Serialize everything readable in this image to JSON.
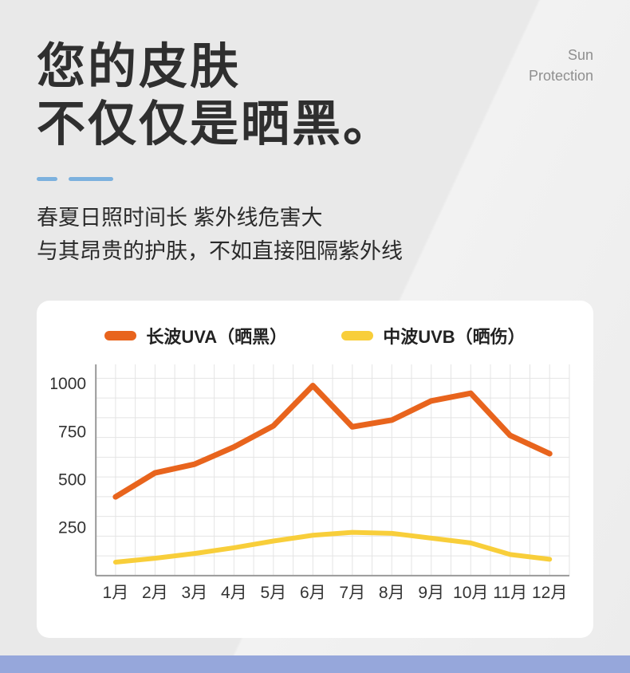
{
  "page": {
    "watermark": {
      "line1": "Sun",
      "line2": "Protection"
    },
    "title": {
      "line1": "您的皮肤",
      "line2": "不仅仅是晒黑。"
    },
    "subtitle": {
      "line1": "春夏日照时间长 紫外线危害大",
      "line2": "与其昂贵的护肤，不如直接阻隔紫外线"
    }
  },
  "colors": {
    "background": "#e9e9e9",
    "title_text": "#2f2f2f",
    "accent_dash_blue": "#7cb1de",
    "uva_orange": "#e8641d",
    "uvb_yellow": "#f8ce3a",
    "card_background": "#ffffff",
    "bottom_band_blue": "#96a7db"
  },
  "chart_data": {
    "type": "line",
    "title": "",
    "xlabel": "",
    "ylabel": "",
    "categories": [
      "1月",
      "2月",
      "3月",
      "4月",
      "5月",
      "6月",
      "7月",
      "8月",
      "9月",
      "10月",
      "11月",
      "12月"
    ],
    "series": [
      {
        "name": "长波UVA（晒黑）",
        "color": "#e8641d",
        "values": [
          410,
          535,
          580,
          670,
          780,
          990,
          775,
          810,
          910,
          950,
          730,
          635
        ]
      },
      {
        "name": "中波UVB（晒伤）",
        "color": "#f8ce3a",
        "values": [
          70,
          90,
          115,
          145,
          180,
          210,
          225,
          220,
          195,
          170,
          110,
          85
        ]
      }
    ],
    "yticks": [
      250,
      500,
      750,
      1000
    ],
    "ylim": [
      0,
      1050
    ],
    "grid": true,
    "legend_position": "top"
  }
}
